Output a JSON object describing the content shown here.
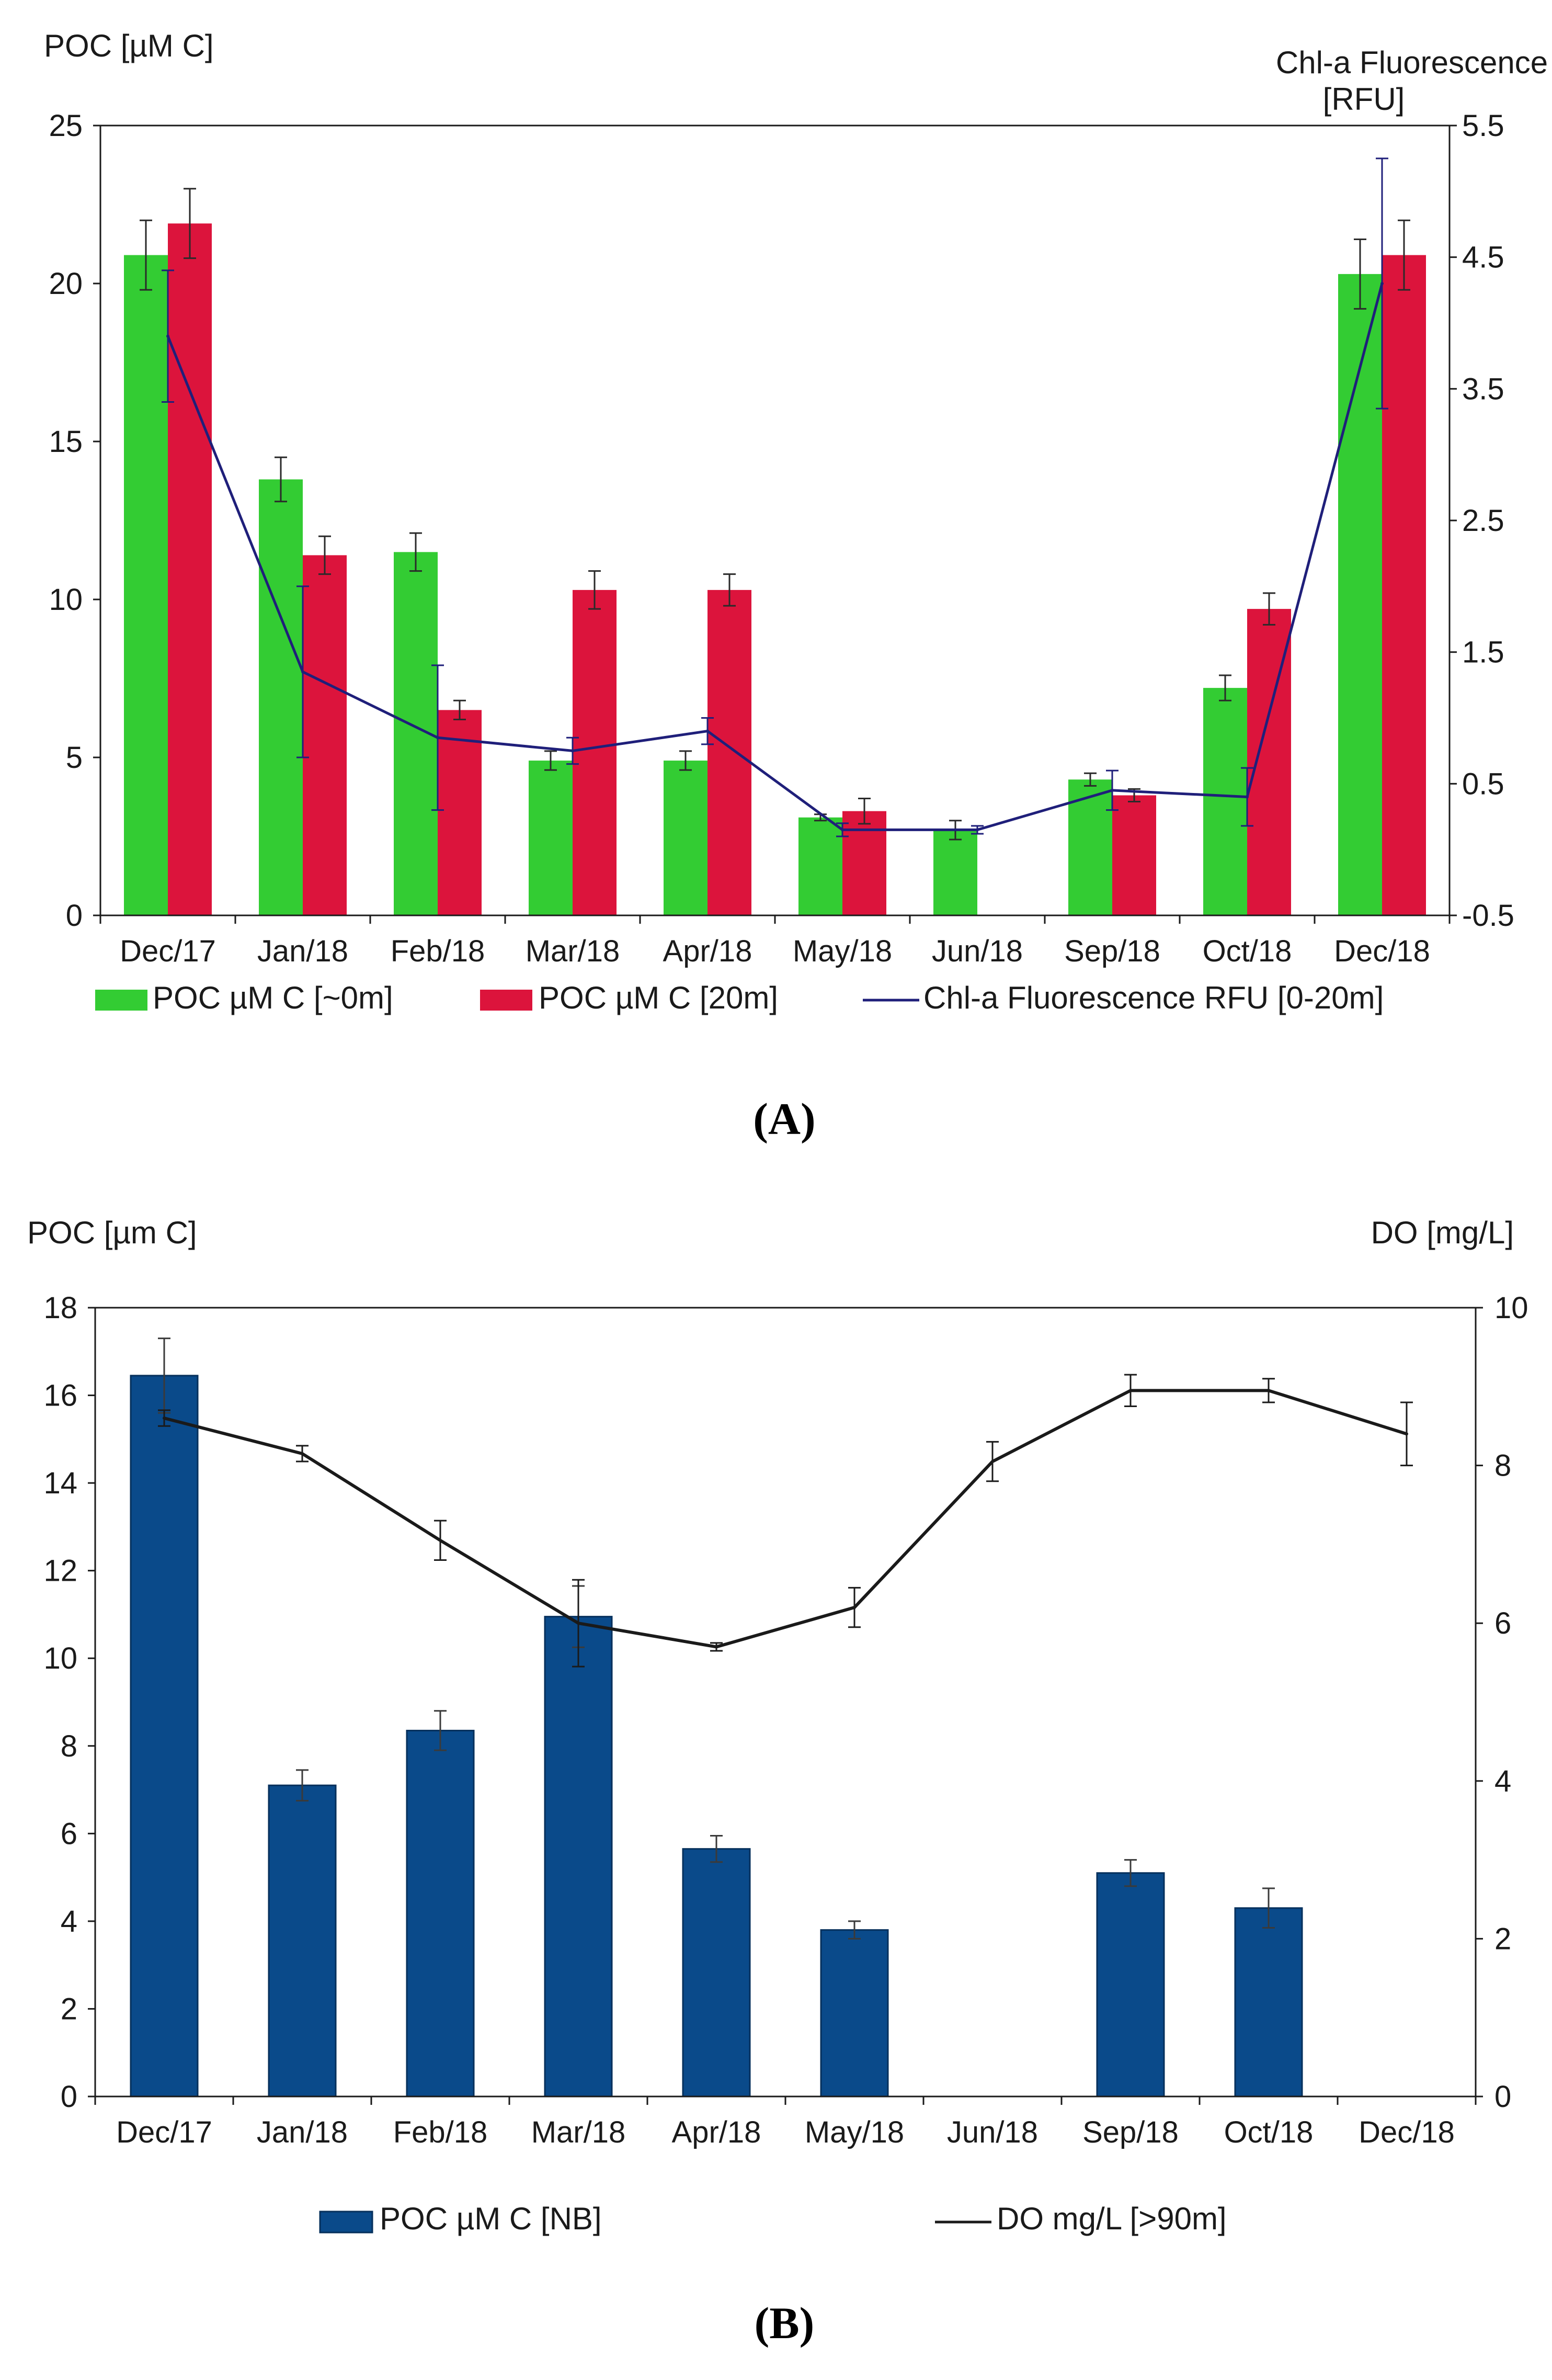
{
  "chart_data": [
    {
      "panel": "(A)",
      "type": "bar",
      "categories": [
        "Dec/17",
        "Jan/18",
        "Feb/18",
        "Mar/18",
        "Apr/18",
        "May/18",
        "Jun/18",
        "Sep/18",
        "Oct/18",
        "Dec/18"
      ],
      "ylabel": "POC [µM C]",
      "y2label_line1": "Chl-a Fluorescence",
      "y2label_line2": "[RFU]",
      "ylim": [
        0,
        25
      ],
      "y2lim": [
        -0.5,
        5.5
      ],
      "yticks": [
        "0",
        "5",
        "10",
        "15",
        "20",
        "25"
      ],
      "y2ticks": [
        "-0.5",
        "0.5",
        "1.5",
        "2.5",
        "3.5",
        "4.5",
        "5.5"
      ],
      "series": [
        {
          "name": "POC µM C [~0m]",
          "kind": "bar",
          "axis": "left",
          "color": "#33cc33",
          "values": [
            20.9,
            13.8,
            11.5,
            4.9,
            4.9,
            3.1,
            2.7,
            4.3,
            7.2,
            20.3
          ],
          "errors": [
            1.1,
            0.7,
            0.6,
            0.3,
            0.3,
            0.1,
            0.3,
            0.2,
            0.4,
            1.1
          ]
        },
        {
          "name": "POC µM C [20m]",
          "kind": "bar",
          "axis": "left",
          "color": "#dc143c",
          "values": [
            21.9,
            11.4,
            6.5,
            10.3,
            10.3,
            3.3,
            null,
            3.8,
            9.7,
            20.9
          ],
          "errors": [
            1.1,
            0.6,
            0.3,
            0.6,
            0.5,
            0.4,
            null,
            0.2,
            0.5,
            1.1
          ]
        },
        {
          "name": "Chl-a Fluorescence RFU [0-20m]",
          "kind": "line",
          "axis": "right",
          "color": "#1f1f7a",
          "values": [
            3.9,
            1.35,
            0.85,
            0.75,
            0.9,
            0.15,
            0.15,
            0.45,
            0.4,
            4.3
          ],
          "errors": [
            0.5,
            0.65,
            0.55,
            0.1,
            0.1,
            0.05,
            0.03,
            0.15,
            0.22,
            0.95
          ]
        }
      ]
    },
    {
      "panel": "(B)",
      "type": "bar",
      "categories": [
        "Dec/17",
        "Jan/18",
        "Feb/18",
        "Mar/18",
        "Apr/18",
        "May/18",
        "Jun/18",
        "Sep/18",
        "Oct/18",
        "Dec/18"
      ],
      "ylabel": "POC [µm C]",
      "y2label": "DO [mg/L]",
      "ylim": [
        0,
        18
      ],
      "y2lim": [
        0,
        10
      ],
      "yticks": [
        "0",
        "2",
        "4",
        "6",
        "8",
        "10",
        "12",
        "14",
        "16",
        "18"
      ],
      "y2ticks": [
        "0",
        "2",
        "4",
        "6",
        "8",
        "10"
      ],
      "series": [
        {
          "name": "POC µM C [NB]",
          "kind": "bar",
          "axis": "left",
          "color": "#0a4a8a",
          "values": [
            16.45,
            7.1,
            8.35,
            10.95,
            5.65,
            3.8,
            null,
            5.1,
            4.3,
            null
          ],
          "errors": [
            0.85,
            0.35,
            0.45,
            0.7,
            0.3,
            0.2,
            null,
            0.3,
            0.45,
            null
          ]
        },
        {
          "name": "DO mg/L [>90m]",
          "kind": "line",
          "axis": "right",
          "color": "#1a1a1a",
          "values": [
            8.6,
            8.15,
            7.05,
            6.0,
            5.7,
            6.2,
            8.05,
            8.95,
            8.95,
            8.4
          ],
          "errors": [
            0.1,
            0.1,
            0.25,
            0.55,
            0.05,
            0.25,
            0.25,
            0.2,
            0.15,
            0.4
          ]
        }
      ]
    }
  ]
}
